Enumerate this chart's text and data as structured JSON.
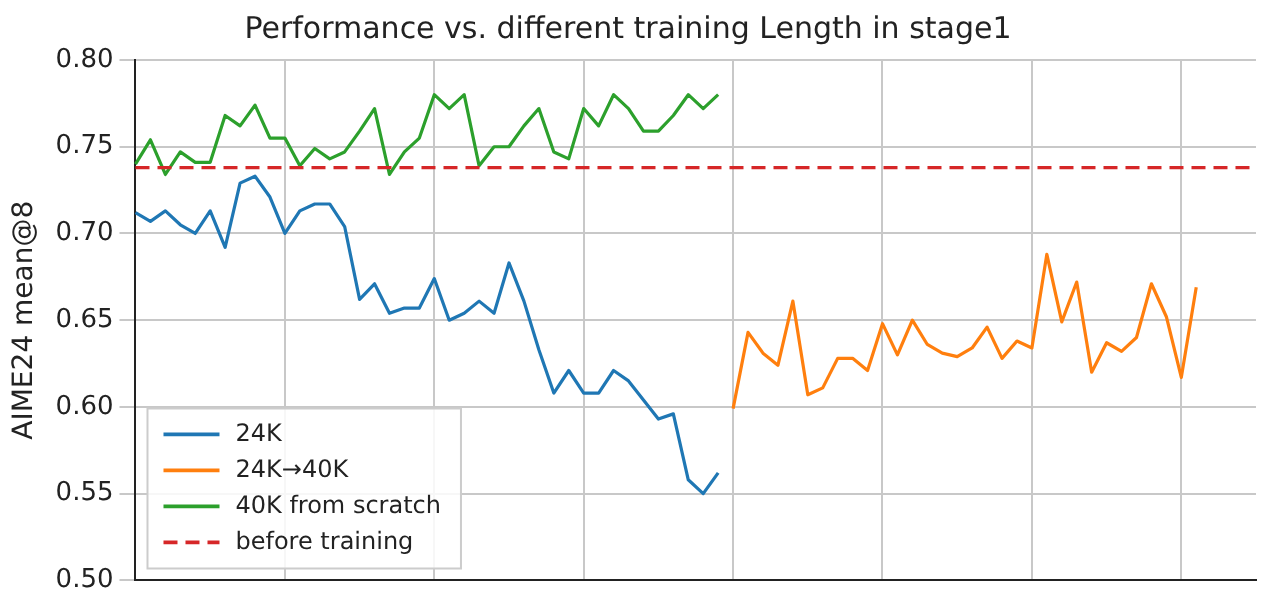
{
  "chart_data": {
    "type": "line",
    "title": "Performance vs. different training Length in stage1",
    "ylabel": "AIME24 mean@8",
    "categories": [
      null,
      null,
      null,
      null,
      null,
      null,
      null,
      null,
      null,
      null,
      null,
      null,
      null,
      null,
      null,
      null,
      null,
      null,
      null,
      null,
      null,
      null,
      null,
      null,
      null,
      null,
      null,
      null,
      null,
      null,
      null,
      null,
      null,
      null,
      null,
      null,
      null,
      null,
      null,
      null,
      null,
      null,
      null,
      null,
      null,
      null,
      null,
      null,
      null,
      null,
      null,
      null,
      null,
      null,
      null,
      null,
      null,
      null,
      null,
      null,
      null,
      null,
      null,
      null,
      null,
      null,
      null,
      null,
      null,
      null,
      null,
      null,
      null,
      null,
      null,
      null
    ],
    "ylim": [
      0.5,
      0.8
    ],
    "yticks": [
      {
        "value": 0.5,
        "label": "0.50"
      },
      {
        "value": 0.55,
        "label": "0.55"
      },
      {
        "value": 0.6,
        "label": "0.60"
      },
      {
        "value": 0.65,
        "label": "0.65"
      },
      {
        "value": 0.7,
        "label": "0.70"
      },
      {
        "value": 0.75,
        "label": "0.75"
      },
      {
        "value": 0.8,
        "label": "0.80"
      }
    ],
    "tick_labels": "y",
    "grid": true,
    "legend": "bottom left",
    "marker": "none",
    "line_style": "solid",
    "series": [
      {
        "name": "24K",
        "color": "#1f77b4",
        "values": [
          0.712,
          0.707,
          0.713,
          0.705,
          0.7,
          0.713,
          0.692,
          0.729,
          0.733,
          0.721,
          0.7,
          0.713,
          0.717,
          0.717,
          0.704,
          0.662,
          0.671,
          0.654,
          0.657,
          0.657,
          0.674,
          0.65,
          0.654,
          0.661,
          0.654,
          0.683,
          0.661,
          0.633,
          0.608,
          0.621,
          0.608,
          0.608,
          0.621,
          0.615,
          0.604,
          0.593,
          0.596,
          0.558,
          0.55,
          0.562,
          null,
          null,
          null,
          null,
          null,
          null,
          null,
          null,
          null,
          null,
          null,
          null,
          null,
          null,
          null,
          null,
          null,
          null,
          null,
          null,
          null,
          null,
          null,
          null,
          null,
          null,
          null,
          null,
          null,
          null,
          null,
          null,
          null,
          null,
          null,
          null
        ]
      },
      {
        "name": "24K→40K",
        "color": "#ff7f0e",
        "values": [
          null,
          null,
          null,
          null,
          null,
          null,
          null,
          null,
          null,
          null,
          null,
          null,
          null,
          null,
          null,
          null,
          null,
          null,
          null,
          null,
          null,
          null,
          null,
          null,
          null,
          null,
          null,
          null,
          null,
          null,
          null,
          null,
          null,
          null,
          null,
          null,
          null,
          null,
          null,
          null,
          0.599,
          0.643,
          0.631,
          0.624,
          0.661,
          0.607,
          0.611,
          0.628,
          0.628,
          0.621,
          0.648,
          0.63,
          0.65,
          0.636,
          0.631,
          0.629,
          0.634,
          0.646,
          0.628,
          0.638,
          0.634,
          0.688,
          0.649,
          0.672,
          0.62,
          0.637,
          0.632,
          0.64,
          0.671,
          0.652,
          0.617,
          0.669,
          null,
          null,
          null,
          null
        ]
      },
      {
        "name": "40K from scratch",
        "color": "#2ca02c",
        "values": [
          0.74,
          0.754,
          0.734,
          0.747,
          0.741,
          0.741,
          0.768,
          0.762,
          0.774,
          0.755,
          0.755,
          0.739,
          0.749,
          0.743,
          0.747,
          0.759,
          0.772,
          0.734,
          0.747,
          0.755,
          0.78,
          0.772,
          0.78,
          0.739,
          0.75,
          0.75,
          0.762,
          0.772,
          0.747,
          0.743,
          0.772,
          0.762,
          0.78,
          0.772,
          0.759,
          0.759,
          0.768,
          0.78,
          0.772,
          0.78,
          null,
          null,
          null,
          null,
          null,
          null,
          null,
          null,
          null,
          null,
          null,
          null,
          null,
          null,
          null,
          null,
          null,
          null,
          null,
          null,
          null,
          null,
          null,
          null,
          null,
          null,
          null,
          null,
          null,
          null,
          null,
          null,
          null,
          null,
          null,
          null
        ]
      }
    ],
    "ref_lines": [
      {
        "axis": "y",
        "value": 0.738,
        "label": "before training",
        "color": "#d62728",
        "line_style": "dashed"
      }
    ]
  }
}
